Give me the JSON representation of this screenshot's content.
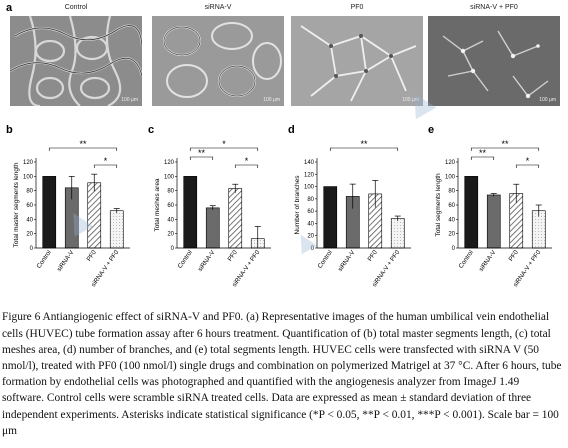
{
  "panels": {
    "a": {
      "letter": "a",
      "images": [
        {
          "title": "Control",
          "scalebar": "100 μm"
        },
        {
          "title": "siRNA-V",
          "scalebar": "100 μm"
        },
        {
          "title": "PF0",
          "scalebar": "100 μm"
        },
        {
          "title": "siRNA-V + PF0",
          "scalebar": "100 μm"
        }
      ]
    }
  },
  "chart_data": [
    {
      "letter": "b",
      "type": "bar",
      "ylabel": "Total master segments length",
      "ylim": [
        0,
        120
      ],
      "yticks": [
        0,
        20,
        40,
        60,
        80,
        100,
        120
      ],
      "categories": [
        "Control",
        "siRNA-V",
        "PF0",
        "siRNA-V + PF0"
      ],
      "values": [
        100,
        84,
        91,
        52
      ],
      "errors": [
        0,
        16,
        12,
        3
      ],
      "fills": [
        "solid-black",
        "solid-gray",
        "hatched",
        "light-dotted"
      ],
      "significance": [
        {
          "from": 0,
          "to": 3,
          "label": "**"
        },
        {
          "from": 2,
          "to": 3,
          "label": "*"
        }
      ]
    },
    {
      "letter": "c",
      "type": "bar",
      "ylabel": "Total meshes area",
      "ylim": [
        0,
        120
      ],
      "yticks": [
        0,
        20,
        40,
        60,
        80,
        100,
        120
      ],
      "categories": [
        "Control",
        "siRNA-V",
        "PF0",
        "siRNA-V + PF0"
      ],
      "values": [
        100,
        56,
        83,
        13
      ],
      "errors": [
        0,
        3,
        6,
        17
      ],
      "fills": [
        "solid-black",
        "solid-gray",
        "hatched",
        "light-dotted"
      ],
      "significance": [
        {
          "from": 0,
          "to": 3,
          "label": "*"
        },
        {
          "from": 0,
          "to": 1,
          "label": "**"
        },
        {
          "from": 2,
          "to": 3,
          "label": "*"
        }
      ]
    },
    {
      "letter": "d",
      "type": "bar",
      "ylabel": "Number of branches",
      "ylim": [
        0,
        140
      ],
      "yticks": [
        0,
        20,
        40,
        60,
        80,
        100,
        120,
        140
      ],
      "categories": [
        "Control",
        "siRNA-V",
        "PF0",
        "siRNA-V + PF0"
      ],
      "values": [
        100,
        84,
        88,
        48
      ],
      "errors": [
        0,
        20,
        22,
        4
      ],
      "fills": [
        "solid-black",
        "solid-gray",
        "hatched",
        "light-dotted"
      ],
      "significance": [
        {
          "from": 0,
          "to": 3,
          "label": "**"
        }
      ]
    },
    {
      "letter": "e",
      "type": "bar",
      "ylabel": "Total segments length",
      "ylim": [
        0,
        120
      ],
      "yticks": [
        0,
        20,
        40,
        60,
        80,
        100,
        120
      ],
      "categories": [
        "Control",
        "siRNA-V",
        "PF0",
        "siRNA-V + PF0"
      ],
      "values": [
        100,
        74,
        76,
        52
      ],
      "errors": [
        0,
        2,
        13,
        8
      ],
      "fills": [
        "solid-black",
        "solid-gray",
        "hatched",
        "light-dotted"
      ],
      "significance": [
        {
          "from": 0,
          "to": 3,
          "label": "**"
        },
        {
          "from": 0,
          "to": 1,
          "label": "**"
        },
        {
          "from": 2,
          "to": 3,
          "label": "*"
        }
      ]
    }
  ],
  "caption": {
    "text": "Figure 6 Antiangiogenic effect of siRNA-V and PF0. (a) Representative images of the human umbilical vein endothelial cells (HUVEC) tube formation assay after 6 hours treatment. Quantification of (b) total master segments length, (c) total meshes area, (d) number of branches, and (e) total segments length. HUVEC cells were transfected with siRNA V (50 nmol/l), treated with PF0 (100 nmol/l) single drugs and combination on polymerized Matrigel at 37 °C. After 6 hours, tube formation by endothelial cells was photographed and quantified with the angiogenesis analyzer from ImageJ 1.49 software. Control cells were scramble siRNA treated cells. Data are expressed as mean ± standard deviation of three independent experiments. Asterisks indicate statistical significance (*P < 0.05, **P < 0.01, ***P < 0.001). Scale bar = 100 μm"
  },
  "colors": {
    "bar_black": "#1a1a1a",
    "bar_gray": "#6b6b6b",
    "watermark": "#9ab8d8"
  }
}
